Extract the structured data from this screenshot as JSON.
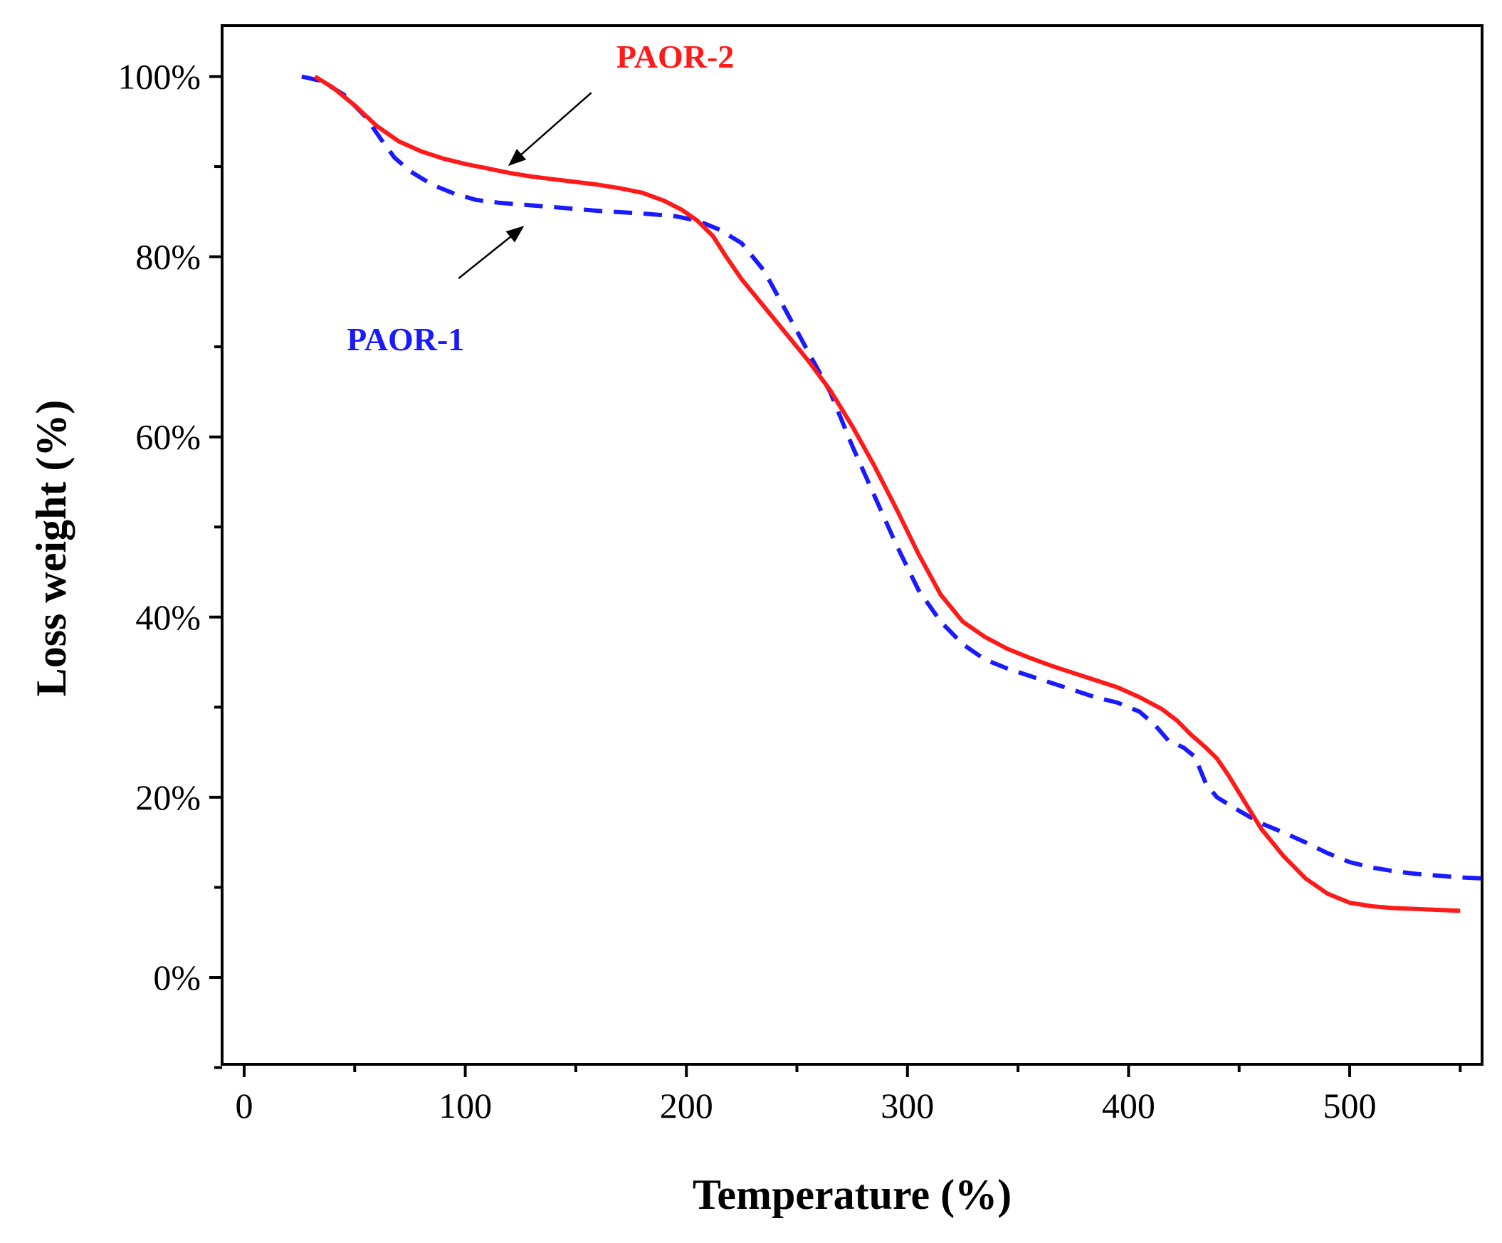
{
  "chart_data": {
    "type": "line",
    "title": "",
    "xlabel": "Temperature (%)",
    "ylabel": "Loss weight (%)",
    "xlim": [
      -10,
      560
    ],
    "ylim": [
      -10,
      105
    ],
    "x_ticks": [
      0,
      100,
      200,
      300,
      400,
      500
    ],
    "x_tick_labels": [
      "0",
      "100",
      "200",
      "300",
      "400",
      "500"
    ],
    "x_minor_ticks": [
      50,
      150,
      250,
      350,
      450,
      550
    ],
    "y_ticks": [
      0,
      20,
      40,
      60,
      80,
      100
    ],
    "y_tick_labels": [
      "0%",
      "20%",
      "40%",
      "60%",
      "80%",
      "100%"
    ],
    "y_minor_ticks": [
      -10,
      10,
      30,
      50,
      70,
      90
    ],
    "grid": false,
    "series": [
      {
        "name": "PAOR-1",
        "color": "#1a1aff",
        "style": "dashed",
        "x": [
          26,
          35,
          45,
          55,
          62,
          68,
          75,
          85,
          95,
          105,
          115,
          125,
          140,
          160,
          180,
          195,
          205,
          215,
          225,
          235,
          245,
          255,
          265,
          275,
          285,
          295,
          305,
          315,
          325,
          335,
          345,
          355,
          365,
          375,
          385,
          395,
          405,
          412,
          418,
          425,
          430,
          435,
          440,
          450,
          460,
          470,
          480,
          490,
          500,
          510,
          520,
          530,
          540,
          550,
          560
        ],
        "y": [
          100,
          99.5,
          98,
          95.5,
          93,
          91,
          89.5,
          88,
          87,
          86.3,
          86,
          85.8,
          85.5,
          85.1,
          84.8,
          84.5,
          84,
          83,
          81.5,
          78.5,
          74,
          69.5,
          65,
          59,
          53.5,
          48,
          43,
          39.5,
          37,
          35.3,
          34.3,
          33.5,
          32.7,
          31.9,
          31.1,
          30.5,
          29.5,
          28,
          26.3,
          25.5,
          24.5,
          21.5,
          20,
          18.5,
          17.1,
          16.1,
          15,
          13.8,
          12.8,
          12.2,
          11.8,
          11.5,
          11.3,
          11.1,
          11
        ]
      },
      {
        "name": "PAOR-2",
        "color": "#ff1a1a",
        "style": "solid",
        "x": [
          32,
          40,
          50,
          60,
          70,
          80,
          90,
          100,
          110,
          120,
          130,
          140,
          150,
          160,
          170,
          180,
          190,
          198,
          205,
          212,
          218,
          225,
          235,
          245,
          255,
          265,
          275,
          285,
          295,
          305,
          315,
          325,
          335,
          345,
          355,
          365,
          375,
          385,
          395,
          405,
          415,
          422,
          428,
          435,
          440,
          445,
          450,
          460,
          470,
          480,
          490,
          500,
          510,
          520,
          530,
          540,
          550
        ],
        "y": [
          100,
          98.8,
          96.8,
          94.5,
          92.8,
          91.7,
          90.9,
          90.3,
          89.8,
          89.3,
          88.9,
          88.6,
          88.3,
          88,
          87.6,
          87.1,
          86.2,
          85.2,
          84,
          82.3,
          80,
          77.5,
          74.5,
          71.5,
          68.5,
          65.2,
          61.2,
          56.8,
          52,
          47,
          42.5,
          39.5,
          37.8,
          36.5,
          35.5,
          34.6,
          33.8,
          33,
          32.2,
          31.1,
          29.8,
          28.5,
          27,
          25.5,
          24.3,
          22.5,
          20.5,
          16.5,
          13.5,
          11,
          9.3,
          8.3,
          7.9,
          7.7,
          7.6,
          7.5,
          7.4
        ]
      }
    ],
    "annotations": [
      {
        "text": "PAOR-2",
        "color": "#ff1a1a",
        "x": 195,
        "y": 101,
        "arrow_from": [
          157,
          98.2
        ],
        "arrow_to": [
          120,
          90.2
        ]
      },
      {
        "text": "PAOR-1",
        "color": "#1a1aff",
        "x": 73,
        "y": 69.6,
        "arrow_from": [
          97,
          77.6
        ],
        "arrow_to": [
          126,
          83.3
        ]
      }
    ]
  }
}
